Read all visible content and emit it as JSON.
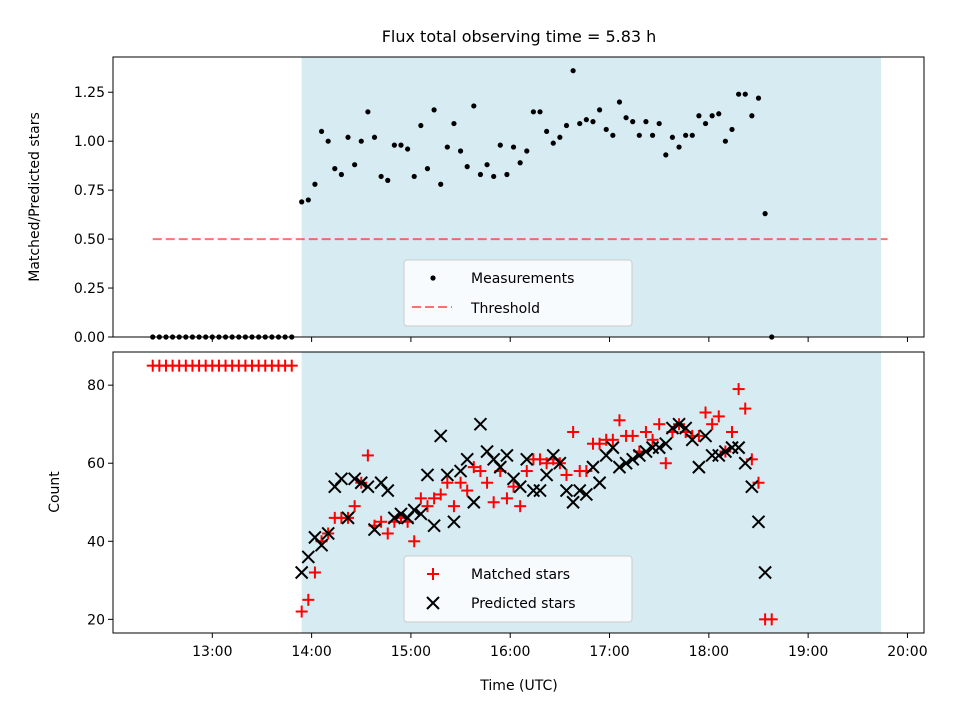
{
  "chart_data": [
    {
      "type": "scatter",
      "title": "Flux total observing time = 5.83 h",
      "xlabel": "",
      "ylabel": "Matched/Predicted stars",
      "ylim": [
        0,
        1.43
      ],
      "xlim": [
        "12:00",
        "20:10"
      ],
      "yticks": [
        "0.00",
        "0.25",
        "0.50",
        "0.75",
        "1.00",
        "1.25"
      ],
      "shaded_interval": [
        "13:54",
        "19:44"
      ],
      "shade_color": "#add8e6",
      "legend_position": "lower center",
      "legend": [
        "Measurements",
        "Threshold"
      ],
      "threshold": {
        "name": "Threshold",
        "value": 0.5,
        "from": "12:24",
        "to": "19:48",
        "color": "#ff0000"
      },
      "series": [
        {
          "name": "Measurements",
          "color": "#000000",
          "points": [
            [
              "12:24",
              0
            ],
            [
              "12:28",
              0
            ],
            [
              "12:32",
              0
            ],
            [
              "12:36",
              0
            ],
            [
              "12:40",
              0
            ],
            [
              "12:44",
              0
            ],
            [
              "12:48",
              0
            ],
            [
              "12:52",
              0
            ],
            [
              "12:56",
              0
            ],
            [
              "13:00",
              0
            ],
            [
              "13:04",
              0
            ],
            [
              "13:08",
              0
            ],
            [
              "13:12",
              0
            ],
            [
              "13:16",
              0
            ],
            [
              "13:20",
              0
            ],
            [
              "13:24",
              0
            ],
            [
              "13:28",
              0
            ],
            [
              "13:32",
              0
            ],
            [
              "13:36",
              0
            ],
            [
              "13:40",
              0
            ],
            [
              "13:44",
              0
            ],
            [
              "13:48",
              0
            ],
            [
              "13:54",
              0.69
            ],
            [
              "13:58",
              0.7
            ],
            [
              "14:02",
              0.78
            ],
            [
              "14:06",
              1.05
            ],
            [
              "14:10",
              1.0
            ],
            [
              "14:14",
              0.86
            ],
            [
              "14:18",
              0.83
            ],
            [
              "14:22",
              1.02
            ],
            [
              "14:26",
              0.88
            ],
            [
              "14:30",
              1.0
            ],
            [
              "14:34",
              1.15
            ],
            [
              "14:38",
              1.02
            ],
            [
              "14:42",
              0.82
            ],
            [
              "14:46",
              0.8
            ],
            [
              "14:50",
              0.98
            ],
            [
              "14:54",
              0.98
            ],
            [
              "14:58",
              0.96
            ],
            [
              "15:02",
              0.82
            ],
            [
              "15:06",
              1.08
            ],
            [
              "15:10",
              0.86
            ],
            [
              "15:14",
              1.16
            ],
            [
              "15:18",
              0.78
            ],
            [
              "15:22",
              0.97
            ],
            [
              "15:26",
              1.09
            ],
            [
              "15:30",
              0.95
            ],
            [
              "15:34",
              0.87
            ],
            [
              "15:38",
              1.18
            ],
            [
              "15:42",
              0.83
            ],
            [
              "15:46",
              0.88
            ],
            [
              "15:50",
              0.82
            ],
            [
              "15:54",
              0.98
            ],
            [
              "15:58",
              0.83
            ],
            [
              "16:02",
              0.97
            ],
            [
              "16:06",
              0.89
            ],
            [
              "16:10",
              0.95
            ],
            [
              "16:14",
              1.15
            ],
            [
              "16:18",
              1.15
            ],
            [
              "16:22",
              1.05
            ],
            [
              "16:26",
              0.99
            ],
            [
              "16:30",
              1.02
            ],
            [
              "16:34",
              1.08
            ],
            [
              "16:38",
              1.36
            ],
            [
              "16:42",
              1.09
            ],
            [
              "16:46",
              1.11
            ],
            [
              "16:50",
              1.1
            ],
            [
              "16:54",
              1.16
            ],
            [
              "16:58",
              1.06
            ],
            [
              "17:02",
              1.03
            ],
            [
              "17:06",
              1.2
            ],
            [
              "17:10",
              1.12
            ],
            [
              "17:14",
              1.1
            ],
            [
              "17:18",
              1.03
            ],
            [
              "17:22",
              1.1
            ],
            [
              "17:26",
              1.03
            ],
            [
              "17:30",
              1.09
            ],
            [
              "17:34",
              0.93
            ],
            [
              "17:38",
              1.02
            ],
            [
              "17:42",
              0.97
            ],
            [
              "17:46",
              1.03
            ],
            [
              "17:50",
              1.03
            ],
            [
              "17:54",
              1.13
            ],
            [
              "17:58",
              1.09
            ],
            [
              "18:02",
              1.13
            ],
            [
              "18:06",
              1.14
            ],
            [
              "18:10",
              1.0
            ],
            [
              "18:14",
              1.06
            ],
            [
              "18:18",
              1.24
            ],
            [
              "18:22",
              1.24
            ],
            [
              "18:26",
              1.13
            ],
            [
              "18:30",
              1.22
            ],
            [
              "18:34",
              0.63
            ],
            [
              "18:38",
              0
            ]
          ]
        }
      ]
    },
    {
      "type": "scatter",
      "title": "",
      "xlabel": "Time (UTC)",
      "ylabel": "Count",
      "ylim": [
        16.5,
        88.5
      ],
      "xlim": [
        "12:00",
        "20:10"
      ],
      "yticks": [
        "20",
        "40",
        "60",
        "80"
      ],
      "xticks": [
        "13:00",
        "14:00",
        "15:00",
        "16:00",
        "17:00",
        "18:00",
        "19:00",
        "20:00"
      ],
      "shaded_interval": [
        "13:54",
        "19:44"
      ],
      "shade_color": "#add8e6",
      "legend_position": "lower center",
      "legend": [
        "Matched stars",
        "Predicted stars"
      ],
      "series": [
        {
          "name": "Matched stars",
          "marker": "+",
          "color": "#ff0000",
          "points": [
            [
              "12:24",
              85
            ],
            [
              "12:28",
              85
            ],
            [
              "12:32",
              85
            ],
            [
              "12:36",
              85
            ],
            [
              "12:40",
              85
            ],
            [
              "12:44",
              85
            ],
            [
              "12:48",
              85
            ],
            [
              "12:52",
              85
            ],
            [
              "12:56",
              85
            ],
            [
              "13:00",
              85
            ],
            [
              "13:04",
              85
            ],
            [
              "13:08",
              85
            ],
            [
              "13:12",
              85
            ],
            [
              "13:16",
              85
            ],
            [
              "13:20",
              85
            ],
            [
              "13:24",
              85
            ],
            [
              "13:28",
              85
            ],
            [
              "13:32",
              85
            ],
            [
              "13:36",
              85
            ],
            [
              "13:40",
              85
            ],
            [
              "13:44",
              85
            ],
            [
              "13:48",
              85
            ],
            [
              "13:54",
              22
            ],
            [
              "13:58",
              25
            ],
            [
              "14:02",
              32
            ],
            [
              "14:06",
              40
            ],
            [
              "14:10",
              42
            ],
            [
              "14:14",
              46
            ],
            [
              "14:18",
              46
            ],
            [
              "14:22",
              46
            ],
            [
              "14:26",
              49
            ],
            [
              "14:30",
              55
            ],
            [
              "14:34",
              62
            ],
            [
              "14:38",
              44
            ],
            [
              "14:42",
              45
            ],
            [
              "14:46",
              42
            ],
            [
              "14:50",
              45
            ],
            [
              "14:54",
              46
            ],
            [
              "14:58",
              45
            ],
            [
              "15:02",
              40
            ],
            [
              "15:06",
              51
            ],
            [
              "15:10",
              49
            ],
            [
              "15:14",
              51
            ],
            [
              "15:18",
              52
            ],
            [
              "15:22",
              55
            ],
            [
              "15:26",
              49
            ],
            [
              "15:30",
              55
            ],
            [
              "15:34",
              53
            ],
            [
              "15:38",
              59
            ],
            [
              "15:42",
              58
            ],
            [
              "15:46",
              55
            ],
            [
              "15:50",
              50
            ],
            [
              "15:54",
              58
            ],
            [
              "15:58",
              51
            ],
            [
              "16:02",
              54
            ],
            [
              "16:06",
              49
            ],
            [
              "16:10",
              58
            ],
            [
              "16:14",
              61
            ],
            [
              "16:18",
              61
            ],
            [
              "16:22",
              60
            ],
            [
              "16:26",
              61
            ],
            [
              "16:30",
              60
            ],
            [
              "16:34",
              57
            ],
            [
              "16:38",
              68
            ],
            [
              "16:42",
              58
            ],
            [
              "16:46",
              58
            ],
            [
              "16:50",
              65
            ],
            [
              "16:54",
              65
            ],
            [
              "16:58",
              66
            ],
            [
              "17:02",
              66
            ],
            [
              "17:06",
              71
            ],
            [
              "17:10",
              67
            ],
            [
              "17:14",
              67
            ],
            [
              "17:18",
              63
            ],
            [
              "17:22",
              68
            ],
            [
              "17:26",
              66
            ],
            [
              "17:30",
              70
            ],
            [
              "17:34",
              60
            ],
            [
              "17:38",
              68
            ],
            [
              "17:42",
              70
            ],
            [
              "17:46",
              68
            ],
            [
              "17:50",
              67
            ],
            [
              "17:54",
              67
            ],
            [
              "17:58",
              73
            ],
            [
              "18:02",
              70
            ],
            [
              "18:06",
              72
            ],
            [
              "18:10",
              63
            ],
            [
              "18:14",
              68
            ],
            [
              "18:18",
              79
            ],
            [
              "18:22",
              74
            ],
            [
              "18:26",
              61
            ],
            [
              "18:30",
              55
            ],
            [
              "18:34",
              20
            ],
            [
              "18:38",
              20
            ]
          ]
        },
        {
          "name": "Predicted stars",
          "marker": "x",
          "color": "#000000",
          "points": [
            [
              "13:54",
              32
            ],
            [
              "13:58",
              36
            ],
            [
              "14:02",
              41
            ],
            [
              "14:06",
              39
            ],
            [
              "14:10",
              42
            ],
            [
              "14:14",
              54
            ],
            [
              "14:18",
              56
            ],
            [
              "14:22",
              46
            ],
            [
              "14:26",
              56
            ],
            [
              "14:30",
              55
            ],
            [
              "14:34",
              54
            ],
            [
              "14:38",
              43
            ],
            [
              "14:42",
              55
            ],
            [
              "14:46",
              53
            ],
            [
              "14:50",
              46
            ],
            [
              "14:54",
              47
            ],
            [
              "14:58",
              46
            ],
            [
              "15:02",
              48
            ],
            [
              "15:06",
              47
            ],
            [
              "15:10",
              57
            ],
            [
              "15:14",
              44
            ],
            [
              "15:18",
              67
            ],
            [
              "15:22",
              57
            ],
            [
              "15:26",
              45
            ],
            [
              "15:30",
              58
            ],
            [
              "15:34",
              61
            ],
            [
              "15:38",
              50
            ],
            [
              "15:42",
              70
            ],
            [
              "15:46",
              63
            ],
            [
              "15:50",
              61
            ],
            [
              "15:54",
              59
            ],
            [
              "15:58",
              62
            ],
            [
              "16:02",
              56
            ],
            [
              "16:06",
              54
            ],
            [
              "16:10",
              61
            ],
            [
              "16:14",
              53
            ],
            [
              "16:18",
              53
            ],
            [
              "16:22",
              57
            ],
            [
              "16:26",
              62
            ],
            [
              "16:30",
              60
            ],
            [
              "16:34",
              53
            ],
            [
              "16:38",
              50
            ],
            [
              "16:42",
              53
            ],
            [
              "16:46",
              52
            ],
            [
              "16:50",
              59
            ],
            [
              "16:54",
              55
            ],
            [
              "16:58",
              62
            ],
            [
              "17:02",
              64
            ],
            [
              "17:06",
              59
            ],
            [
              "17:10",
              60
            ],
            [
              "17:14",
              61
            ],
            [
              "17:18",
              62
            ],
            [
              "17:22",
              63
            ],
            [
              "17:26",
              64
            ],
            [
              "17:30",
              64
            ],
            [
              "17:34",
              65
            ],
            [
              "17:38",
              69
            ],
            [
              "17:42",
              70
            ],
            [
              "17:46",
              69
            ],
            [
              "17:50",
              66
            ],
            [
              "17:54",
              59
            ],
            [
              "17:58",
              67
            ],
            [
              "18:02",
              62
            ],
            [
              "18:06",
              62
            ],
            [
              "18:10",
              63
            ],
            [
              "18:14",
              64
            ],
            [
              "18:18",
              64
            ],
            [
              "18:22",
              60
            ],
            [
              "18:26",
              54
            ],
            [
              "18:30",
              45
            ],
            [
              "18:34",
              32
            ]
          ]
        }
      ]
    }
  ]
}
